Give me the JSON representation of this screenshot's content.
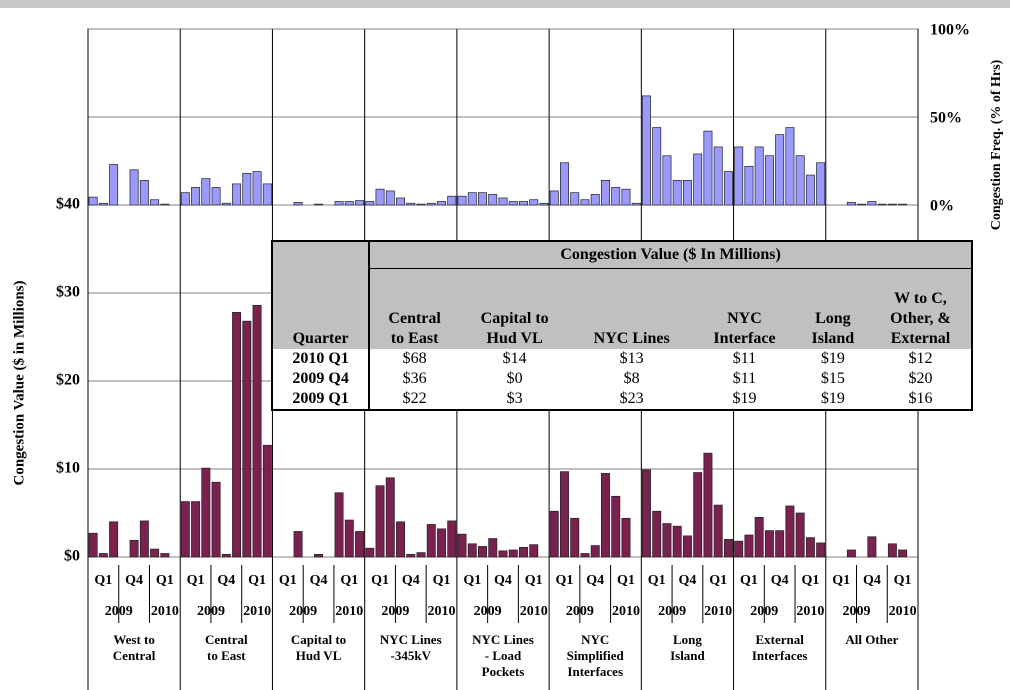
{
  "chart_data": {
    "type": "bar",
    "ylabel": "Congestion Value ($ in Millions)",
    "y2label": "Congestion Freq. (% of Hrs)",
    "ylim": [
      0,
      40
    ],
    "yticks": [
      {
        "value": 0,
        "label": "$0"
      },
      {
        "value": 10,
        "label": "$10"
      },
      {
        "value": 20,
        "label": "$20"
      },
      {
        "value": 30,
        "label": "$30"
      },
      {
        "value": 40,
        "label": "$40"
      }
    ],
    "y2lim": [
      0,
      100
    ],
    "y2ticks": [
      {
        "value": 0,
        "label": "0%"
      },
      {
        "value": 50,
        "label": "50%"
      },
      {
        "value": 100,
        "label": "100%"
      }
    ],
    "grid": true,
    "value_color": "#7b2150",
    "freq_color": "#9999ff",
    "quarters": [
      "Q1",
      "Q4",
      "Q1"
    ],
    "years": [
      "2009",
      "2010"
    ],
    "groups": [
      {
        "label": "West to\nCentral",
        "values": [
          2.7,
          0.4,
          4.0,
          0,
          1.9,
          4.1,
          0.9,
          0.4,
          0
        ],
        "freq": [
          4.5,
          1,
          23,
          0,
          20,
          14,
          3,
          0.5,
          0
        ]
      },
      {
        "label": "Central\nto East",
        "values": [
          6.3,
          6.3,
          10.1,
          8.5,
          0.3,
          27.8,
          26.8,
          28.6,
          12.7
        ],
        "freq": [
          7,
          10,
          15,
          10,
          1,
          12,
          18,
          19,
          12
        ]
      },
      {
        "label": "Capital to\nHud VL",
        "values": [
          0,
          0,
          2.9,
          0,
          0.3,
          0,
          7.3,
          4.2,
          2.9
        ],
        "freq": [
          0,
          0,
          1.5,
          0,
          0.5,
          0,
          2,
          2,
          2.5
        ]
      },
      {
        "label": "NYC Lines\n-345kV",
        "values": [
          1.0,
          8.1,
          9.0,
          4.0,
          0.3,
          0.5,
          3.7,
          3.2,
          4.1
        ],
        "freq": [
          2,
          9,
          8,
          4,
          1,
          0.5,
          1,
          2,
          5
        ]
      },
      {
        "label": "NYC Lines\n- Load\nPockets",
        "values": [
          2.6,
          1.5,
          1.2,
          2.1,
          0.7,
          0.8,
          1.1,
          1.4,
          0
        ],
        "freq": [
          5,
          7,
          7,
          6,
          4,
          2,
          2,
          3,
          1
        ]
      },
      {
        "label": "NYC\nSimplified\nInterfaces",
        "values": [
          5.2,
          9.7,
          4.4,
          0.4,
          1.3,
          9.5,
          6.9,
          4.4,
          0
        ],
        "freq": [
          8,
          24,
          7,
          3,
          6,
          14,
          10,
          9,
          1
        ]
      },
      {
        "label": "Long\nIsland",
        "values": [
          9.9,
          5.2,
          3.8,
          3.5,
          2.4,
          9.6,
          11.8,
          5.9,
          2.0
        ],
        "freq": [
          62,
          44,
          28,
          14,
          14,
          29,
          42,
          33,
          19
        ]
      },
      {
        "label": "External\nInterfaces",
        "values": [
          1.8,
          2.5,
          4.5,
          3.0,
          3.0,
          5.8,
          5.0,
          2.2,
          1.6
        ],
        "freq": [
          33,
          22,
          33,
          28,
          40,
          44,
          28,
          17,
          24
        ]
      },
      {
        "label": "All Other",
        "values": [
          0,
          0,
          0.8,
          0,
          2.3,
          0,
          1.5,
          0.8,
          0
        ],
        "freq": [
          0,
          0,
          1.5,
          0.5,
          2,
          0.5,
          0.5,
          0.5,
          0
        ]
      }
    ]
  },
  "table": {
    "title": "Congestion Value ($ In Millions)",
    "columns": [
      "Quarter",
      "Central\nto East",
      "Capital to\nHud VL",
      "NYC Lines",
      "NYC\nInterface",
      "Long\nIsland",
      "W to C,\nOther, &\nExternal"
    ],
    "rows": [
      [
        "2010 Q1",
        "$68",
        "$14",
        "$13",
        "$11",
        "$19",
        "$12"
      ],
      [
        "2009 Q4",
        "$36",
        "$0",
        "$8",
        "$11",
        "$15",
        "$20"
      ],
      [
        "2009 Q1",
        "$22",
        "$3",
        "$23",
        "$19",
        "$19",
        "$16"
      ]
    ]
  }
}
